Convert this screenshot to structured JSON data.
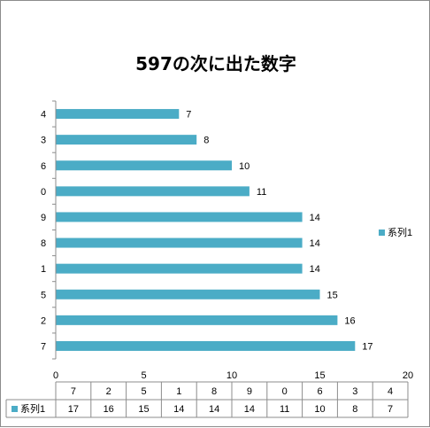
{
  "chart_data": {
    "type": "bar",
    "orientation": "horizontal",
    "title": "597の次に出た数字",
    "categories": [
      "7",
      "2",
      "5",
      "1",
      "8",
      "9",
      "0",
      "6",
      "3",
      "4"
    ],
    "series": [
      {
        "name": "系列1",
        "values": [
          17,
          16,
          15,
          14,
          14,
          14,
          11,
          10,
          8,
          7
        ],
        "color": "#4bacc6"
      }
    ],
    "xlim": [
      0,
      20
    ],
    "xticks": [
      0,
      5,
      10,
      15,
      20
    ],
    "grid": false,
    "legend_position": "right",
    "data_table": true
  }
}
